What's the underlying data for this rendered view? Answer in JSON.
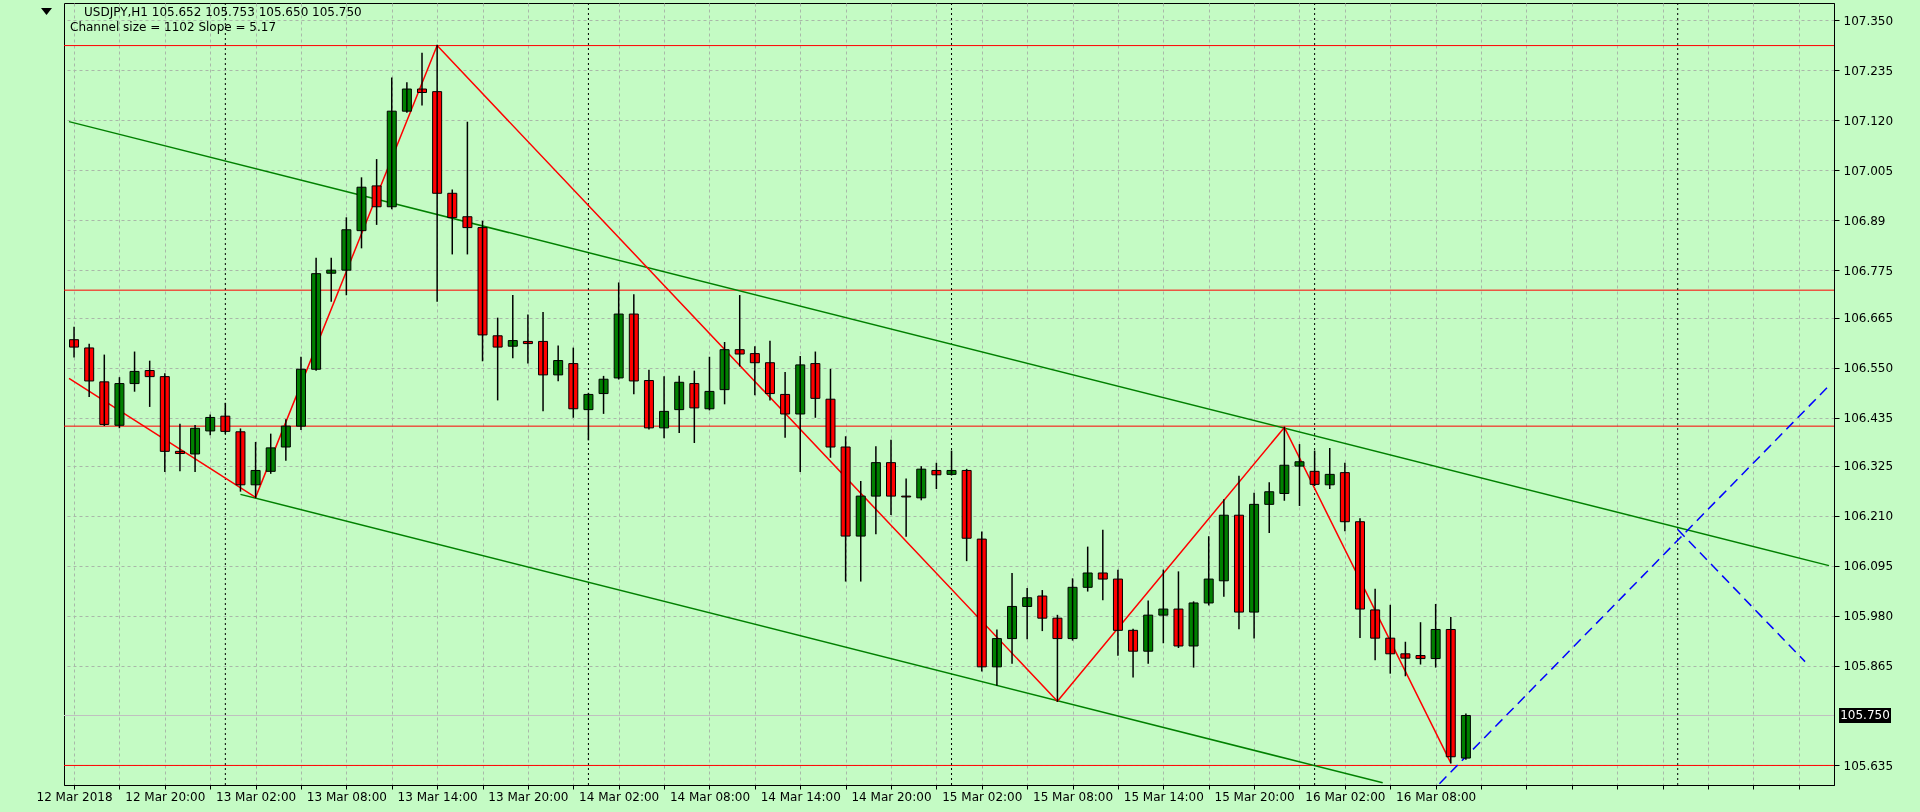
{
  "chart_data": {
    "type": "candlestick",
    "title": "USDJPY,H1  105.652 105.753 105.650 105.750",
    "subtitle": "Channel size = 1102 Slope = 5.17",
    "x": [
      "2018-03-12T14:00",
      "2018-03-12T15:00",
      "2018-03-12T16:00",
      "2018-03-12T17:00",
      "2018-03-12T18:00",
      "2018-03-12T19:00",
      "2018-03-12T20:00",
      "2018-03-12T21:00",
      "2018-03-12T22:00",
      "2018-03-12T23:00",
      "2018-03-13T00:00",
      "2018-03-13T01:00",
      "2018-03-13T02:00",
      "2018-03-13T03:00",
      "2018-03-13T04:00",
      "2018-03-13T05:00",
      "2018-03-13T06:00",
      "2018-03-13T07:00",
      "2018-03-13T08:00",
      "2018-03-13T09:00",
      "2018-03-13T10:00",
      "2018-03-13T11:00",
      "2018-03-13T12:00",
      "2018-03-13T13:00",
      "2018-03-13T14:00",
      "2018-03-13T15:00",
      "2018-03-13T16:00",
      "2018-03-13T17:00",
      "2018-03-13T18:00",
      "2018-03-13T19:00",
      "2018-03-13T20:00",
      "2018-03-13T21:00",
      "2018-03-13T22:00",
      "2018-03-13T23:00",
      "2018-03-14T00:00",
      "2018-03-14T01:00",
      "2018-03-14T02:00",
      "2018-03-14T03:00",
      "2018-03-14T04:00",
      "2018-03-14T05:00",
      "2018-03-14T06:00",
      "2018-03-14T07:00",
      "2018-03-14T08:00",
      "2018-03-14T09:00",
      "2018-03-14T10:00",
      "2018-03-14T11:00",
      "2018-03-14T12:00",
      "2018-03-14T13:00",
      "2018-03-14T14:00",
      "2018-03-14T15:00",
      "2018-03-14T16:00",
      "2018-03-14T17:00",
      "2018-03-14T18:00",
      "2018-03-14T19:00",
      "2018-03-14T20:00",
      "2018-03-14T21:00",
      "2018-03-14T22:00",
      "2018-03-14T23:00",
      "2018-03-15T00:00",
      "2018-03-15T01:00",
      "2018-03-15T02:00",
      "2018-03-15T03:00",
      "2018-03-15T04:00",
      "2018-03-15T05:00",
      "2018-03-15T06:00",
      "2018-03-15T07:00",
      "2018-03-15T08:00",
      "2018-03-15T09:00",
      "2018-03-15T10:00",
      "2018-03-15T11:00",
      "2018-03-15T12:00",
      "2018-03-15T13:00",
      "2018-03-15T14:00",
      "2018-03-15T15:00",
      "2018-03-15T16:00",
      "2018-03-15T17:00",
      "2018-03-15T18:00",
      "2018-03-15T19:00",
      "2018-03-15T20:00",
      "2018-03-15T21:00",
      "2018-03-15T22:00",
      "2018-03-15T23:00",
      "2018-03-16T00:00",
      "2018-03-16T01:00",
      "2018-03-16T02:00",
      "2018-03-16T03:00",
      "2018-03-16T04:00",
      "2018-03-16T05:00",
      "2018-03-16T06:00",
      "2018-03-16T07:00",
      "2018-03-16T08:00",
      "2018-03-16T09:00",
      "2018-03-16T10:00"
    ],
    "ohlc": [
      [
        106.615,
        106.643,
        106.576,
        106.598
      ],
      [
        106.596,
        106.604,
        106.485,
        106.52
      ],
      [
        106.518,
        106.579,
        106.418,
        106.42
      ],
      [
        106.418,
        106.527,
        106.413,
        106.514
      ],
      [
        106.514,
        106.586,
        106.497,
        106.542
      ],
      [
        106.544,
        106.565,
        106.462,
        106.53
      ],
      [
        106.53,
        106.536,
        106.312,
        106.358
      ],
      [
        106.358,
        106.42,
        106.314,
        106.353
      ],
      [
        106.352,
        106.417,
        106.312,
        106.411
      ],
      [
        106.405,
        106.441,
        106.397,
        106.436
      ],
      [
        106.439,
        106.468,
        106.4,
        106.404
      ],
      [
        106.403,
        106.409,
        106.267,
        106.281
      ],
      [
        106.281,
        106.378,
        106.252,
        106.314
      ],
      [
        106.312,
        106.397,
        106.308,
        106.366
      ],
      [
        106.368,
        106.43,
        106.338,
        106.416
      ],
      [
        106.416,
        106.574,
        106.409,
        106.547
      ],
      [
        106.547,
        106.802,
        106.545,
        106.767
      ],
      [
        106.768,
        106.802,
        106.704,
        106.775
      ],
      [
        106.775,
        106.895,
        106.719,
        106.868
      ],
      [
        106.866,
        106.987,
        106.827,
        106.966
      ],
      [
        106.969,
        107.029,
        106.881,
        106.921
      ],
      [
        106.921,
        107.217,
        106.917,
        107.141
      ],
      [
        107.141,
        107.206,
        107.139,
        107.192
      ],
      [
        107.192,
        107.274,
        107.156,
        107.184
      ],
      [
        107.186,
        107.292,
        106.704,
        106.952
      ],
      [
        106.952,
        106.959,
        106.813,
        106.896
      ],
      [
        106.898,
        107.115,
        106.813,
        106.873
      ],
      [
        106.873,
        106.887,
        106.567,
        106.626
      ],
      [
        106.624,
        106.664,
        106.477,
        106.598
      ],
      [
        106.6,
        106.716,
        106.574,
        106.613
      ],
      [
        106.611,
        106.671,
        106.562,
        106.606
      ],
      [
        106.611,
        106.677,
        106.452,
        106.534
      ],
      [
        106.534,
        106.6,
        106.521,
        106.567
      ],
      [
        106.56,
        106.595,
        106.437,
        106.456
      ],
      [
        106.454,
        106.491,
        106.385,
        106.489
      ],
      [
        106.491,
        106.53,
        106.446,
        106.524
      ],
      [
        106.527,
        106.745,
        106.525,
        106.674
      ],
      [
        106.674,
        106.718,
        106.491,
        106.52
      ],
      [
        106.521,
        106.544,
        106.41,
        106.412
      ],
      [
        106.412,
        106.529,
        106.39,
        106.45
      ],
      [
        106.454,
        106.53,
        106.402,
        106.517
      ],
      [
        106.514,
        106.542,
        106.379,
        106.458
      ],
      [
        106.456,
        106.574,
        106.454,
        106.496
      ],
      [
        106.5,
        106.608,
        106.468,
        106.592
      ],
      [
        106.592,
        106.716,
        106.555,
        106.582
      ],
      [
        106.583,
        106.598,
        106.489,
        106.562
      ],
      [
        106.562,
        106.611,
        106.477,
        106.491
      ],
      [
        106.489,
        106.539,
        106.391,
        106.444
      ],
      [
        106.444,
        106.576,
        106.312,
        106.557
      ],
      [
        106.56,
        106.586,
        106.437,
        106.48
      ],
      [
        106.478,
        106.546,
        106.345,
        106.368
      ],
      [
        106.368,
        106.391,
        106.06,
        106.163
      ],
      [
        106.163,
        106.288,
        106.06,
        106.255
      ],
      [
        106.255,
        106.368,
        106.169,
        106.332
      ],
      [
        106.332,
        106.383,
        106.213,
        106.255
      ],
      [
        106.255,
        106.294,
        106.163,
        106.253
      ],
      [
        106.251,
        106.322,
        106.247,
        106.317
      ],
      [
        106.314,
        106.33,
        106.273,
        106.304
      ],
      [
        106.305,
        106.358,
        106.304,
        106.314
      ],
      [
        106.314,
        106.316,
        106.107,
        106.158
      ],
      [
        106.156,
        106.172,
        105.853,
        105.862
      ],
      [
        105.862,
        105.946,
        105.82,
        105.927
      ],
      [
        105.927,
        106.076,
        105.871,
        106.001
      ],
      [
        106.001,
        106.042,
        105.927,
        106.021
      ],
      [
        106.025,
        106.037,
        105.946,
        105.974
      ],
      [
        105.974,
        105.98,
        105.783,
        105.927
      ],
      [
        105.927,
        106.064,
        105.924,
        106.045
      ],
      [
        106.045,
        106.137,
        106.037,
        106.078
      ],
      [
        106.078,
        106.176,
        106.017,
        106.064
      ],
      [
        106.064,
        106.084,
        105.889,
        105.946
      ],
      [
        105.946,
        105.948,
        105.839,
        105.898
      ],
      [
        105.898,
        106.013,
        105.871,
        105.981
      ],
      [
        105.981,
        106.084,
        105.918,
        105.995
      ],
      [
        105.995,
        106.08,
        105.907,
        105.91
      ],
      [
        105.91,
        106.011,
        105.862,
        106.009
      ],
      [
        106.009,
        106.161,
        106.005,
        106.064
      ],
      [
        106.06,
        106.246,
        106.025,
        106.211
      ],
      [
        106.211,
        106.3,
        105.95,
        105.988
      ],
      [
        105.988,
        106.261,
        105.929,
        106.236
      ],
      [
        106.236,
        106.285,
        106.172,
        106.265
      ],
      [
        106.261,
        106.413,
        106.246,
        106.326
      ],
      [
        106.324,
        106.373,
        106.234,
        106.334
      ],
      [
        106.312,
        106.358,
        106.28,
        106.282
      ],
      [
        106.281,
        106.364,
        106.273,
        106.305
      ],
      [
        106.309,
        106.33,
        106.176,
        106.196
      ],
      [
        106.196,
        106.202,
        105.93,
        105.995
      ],
      [
        105.993,
        106.04,
        105.879,
        105.928
      ],
      [
        105.928,
        106.003,
        105.848,
        105.892
      ],
      [
        105.892,
        105.918,
        105.842,
        105.882
      ],
      [
        105.888,
        105.963,
        105.869,
        105.881
      ],
      [
        105.881,
        106.005,
        105.862,
        105.948
      ],
      [
        105.948,
        105.975,
        105.641,
        105.655
      ],
      [
        105.652,
        105.753,
        105.65,
        105.75
      ]
    ],
    "colors": [
      "#ff0000",
      "#ff0000",
      "#ff0000",
      "#008000",
      "#008000",
      "#ff0000",
      "#ff0000",
      "#ff0000",
      "#008000",
      "#008000",
      "#ff0000",
      "#ff0000",
      "#008000",
      "#008000",
      "#008000",
      "#008000",
      "#008000",
      "#008000",
      "#008000",
      "#008000",
      "#ff0000",
      "#008000",
      "#008000",
      "#ff0000",
      "#ff0000",
      "#ff0000",
      "#ff0000",
      "#ff0000",
      "#ff0000",
      "#008000",
      "#ff0000",
      "#ff0000",
      "#008000",
      "#ff0000",
      "#008000",
      "#008000",
      "#008000",
      "#ff0000",
      "#ff0000",
      "#008000",
      "#008000",
      "#ff0000",
      "#008000",
      "#008000",
      "#ff0000",
      "#ff0000",
      "#ff0000",
      "#ff0000",
      "#008000",
      "#ff0000",
      "#ff0000",
      "#ff0000",
      "#008000",
      "#008000",
      "#ff0000",
      "#ff0000",
      "#008000",
      "#ff0000",
      "#008000",
      "#ff0000",
      "#ff0000",
      "#008000",
      "#008000",
      "#008000",
      "#ff0000",
      "#ff0000",
      "#008000",
      "#008000",
      "#ff0000",
      "#ff0000",
      "#ff0000",
      "#008000",
      "#008000",
      "#ff0000",
      "#008000",
      "#008000",
      "#008000",
      "#ff0000",
      "#008000",
      "#008000",
      "#008000",
      "#008000",
      "#ff0000",
      "#008000",
      "#ff0000",
      "#ff0000",
      "#ff0000",
      "#ff0000",
      "#ff0000",
      "#ff0000",
      "#008000",
      "#ff0000",
      "#008000"
    ],
    "series": [
      {
        "type": "line",
        "color": "#008000",
        "x": [
          "2018-03-12T13:40",
          "2018-03-17T10:00"
        ],
        "values": [
          107.117,
          106.095
        ]
      },
      {
        "type": "line",
        "color": "#008000",
        "x": [
          "2018-03-13T01:00",
          "2018-03-16T04:30"
        ],
        "values": [
          106.259,
          105.595
        ]
      },
      {
        "type": "line",
        "color": "#ff0000",
        "x": [
          "2018-03-12T13:40",
          "2018-03-13T02:00",
          "2018-03-13T14:00",
          "2018-03-15T07:00",
          "2018-03-15T22:00",
          "2018-03-16T09:00"
        ],
        "values": [
          106.526,
          106.252,
          107.292,
          105.783,
          106.413,
          105.641
        ]
      },
      {
        "type": "line",
        "color": "#0000ff",
        "line_style": "dashed",
        "x": [
          "2018-03-16T08:15",
          "2018-03-17T10:00"
        ],
        "values": [
          105.593,
          106.509
        ]
      },
      {
        "type": "line",
        "color": "#0000ff",
        "line_style": "dashed",
        "x": [
          "2018-03-17T00:00",
          "2018-03-17T08:25"
        ],
        "values": [
          106.178,
          105.874
        ]
      }
    ],
    "ref_lines": [
      {
        "axis": "y",
        "value": 107.292,
        "color": "#ff0000"
      },
      {
        "axis": "y",
        "value": 106.729,
        "color": "#ff0000"
      },
      {
        "axis": "y",
        "value": 106.416,
        "color": "#ff0000"
      },
      {
        "axis": "y",
        "value": 105.635,
        "color": "#ff0000"
      },
      {
        "axis": "y",
        "value": 105.75,
        "label": "105.750",
        "color": "#c0c0c0"
      },
      {
        "axis": "x",
        "value": "2018-03-13T00:00",
        "color": "#000000",
        "line_style": "dotted"
      },
      {
        "axis": "x",
        "value": "2018-03-14T00:00",
        "color": "#000000",
        "line_style": "dotted"
      },
      {
        "axis": "x",
        "value": "2018-03-15T00:00",
        "color": "#000000",
        "line_style": "dotted"
      },
      {
        "axis": "x",
        "value": "2018-03-16T00:00",
        "color": "#000000",
        "line_style": "dotted"
      },
      {
        "axis": "x",
        "value": "2018-03-17T00:00",
        "color": "#000000",
        "line_style": "dotted"
      }
    ],
    "xlim": [
      "2018-03-12T13:40",
      "2018-03-17T10:00"
    ],
    "xticks": [
      {
        "value": "2018-03-12T14:00",
        "label": "12 Mar 2018"
      },
      {
        "value": "2018-03-12T17:00",
        "label": null
      },
      {
        "value": "2018-03-12T20:00",
        "label": "12 Mar 20:00"
      },
      {
        "value": "2018-03-12T23:00",
        "label": null
      },
      {
        "value": "2018-03-13T02:00",
        "label": "13 Mar 02:00"
      },
      {
        "value": "2018-03-13T05:00",
        "label": null
      },
      {
        "value": "2018-03-13T08:00",
        "label": "13 Mar 08:00"
      },
      {
        "value": "2018-03-13T11:00",
        "label": null
      },
      {
        "value": "2018-03-13T14:00",
        "label": "13 Mar 14:00"
      },
      {
        "value": "2018-03-13T17:00",
        "label": null
      },
      {
        "value": "2018-03-13T20:00",
        "label": "13 Mar 20:00"
      },
      {
        "value": "2018-03-13T23:00",
        "label": null
      },
      {
        "value": "2018-03-14T02:00",
        "label": "14 Mar 02:00"
      },
      {
        "value": "2018-03-14T05:00",
        "label": null
      },
      {
        "value": "2018-03-14T08:00",
        "label": "14 Mar 08:00"
      },
      {
        "value": "2018-03-14T11:00",
        "label": null
      },
      {
        "value": "2018-03-14T14:00",
        "label": "14 Mar 14:00"
      },
      {
        "value": "2018-03-14T17:00",
        "label": null
      },
      {
        "value": "2018-03-14T20:00",
        "label": "14 Mar 20:00"
      },
      {
        "value": "2018-03-14T23:00",
        "label": null
      },
      {
        "value": "2018-03-15T02:00",
        "label": "15 Mar 02:00"
      },
      {
        "value": "2018-03-15T05:00",
        "label": null
      },
      {
        "value": "2018-03-15T08:00",
        "label": "15 Mar 08:00"
      },
      {
        "value": "2018-03-15T11:00",
        "label": null
      },
      {
        "value": "2018-03-15T14:00",
        "label": "15 Mar 14:00"
      },
      {
        "value": "2018-03-15T17:00",
        "label": null
      },
      {
        "value": "2018-03-15T20:00",
        "label": "15 Mar 20:00"
      },
      {
        "value": "2018-03-15T23:00",
        "label": null
      },
      {
        "value": "2018-03-16T02:00",
        "label": "16 Mar 02:00"
      },
      {
        "value": "2018-03-16T05:00",
        "label": null
      },
      {
        "value": "2018-03-16T08:00",
        "label": "16 Mar 08:00"
      },
      {
        "value": "2018-03-16T11:00",
        "label": null
      },
      {
        "value": "2018-03-16T14:00",
        "label": null
      },
      {
        "value": "2018-03-16T17:00",
        "label": null
      },
      {
        "value": "2018-03-16T20:00",
        "label": null
      },
      {
        "value": "2018-03-16T23:00",
        "label": null
      },
      {
        "value": "2018-03-17T02:00",
        "label": null
      },
      {
        "value": "2018-03-17T05:00",
        "label": null
      },
      {
        "value": "2018-03-17T08:00",
        "label": null
      }
    ],
    "ylim": [
      105.59,
      107.39
    ],
    "yticks": [
      105.635,
      105.865,
      {
        "value": 105.98,
        "label": "105.980"
      },
      106.095,
      {
        "value": 106.21,
        "label": "106.210"
      },
      106.325,
      106.435,
      {
        "value": 106.55,
        "label": "106.550"
      },
      106.665,
      106.775,
      106.89,
      107.005,
      {
        "value": 107.12,
        "label": "107.120"
      },
      107.235,
      {
        "value": 107.35,
        "label": "107.350"
      }
    ],
    "grid": true
  }
}
